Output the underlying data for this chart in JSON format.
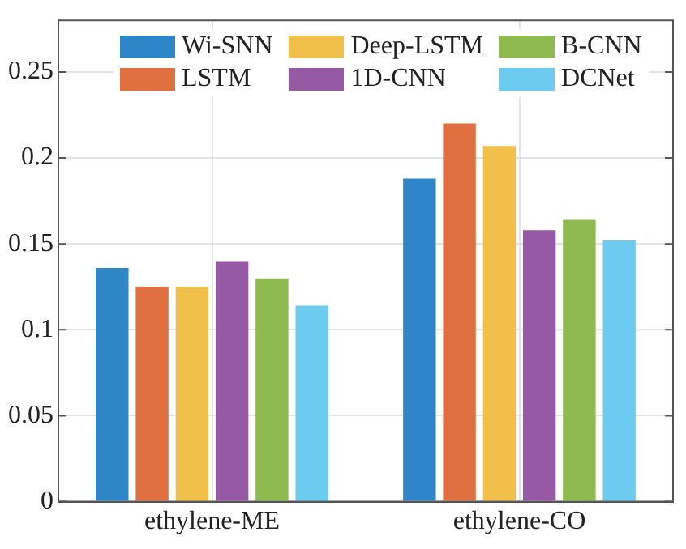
{
  "chart_data": {
    "type": "bar",
    "categories": [
      "ethylene-ME",
      "ethylene-CO"
    ],
    "series": [
      {
        "name": "Wi-SNN",
        "color": "#2e86c8",
        "values": [
          0.136,
          0.188
        ]
      },
      {
        "name": "LSTM",
        "color": "#e0703f",
        "values": [
          0.125,
          0.22
        ]
      },
      {
        "name": "Deep-LSTM",
        "color": "#f0c04a",
        "values": [
          0.125,
          0.207
        ]
      },
      {
        "name": "1D-CNN",
        "color": "#9659a3",
        "values": [
          0.14,
          0.158
        ]
      },
      {
        "name": "B-CNN",
        "color": "#8fba50",
        "values": [
          0.13,
          0.164
        ]
      },
      {
        "name": "DCNet",
        "color": "#6ecbf0",
        "values": [
          0.114,
          0.152
        ]
      }
    ],
    "ylim": [
      0,
      0.28
    ],
    "yticks": [
      0,
      0.05,
      {
        "value": 0.1,
        "label": "0.1"
      },
      0.15,
      {
        "value": 0.2,
        "label": "0.2"
      },
      0.25
    ],
    "grid": true,
    "legend": "top"
  }
}
